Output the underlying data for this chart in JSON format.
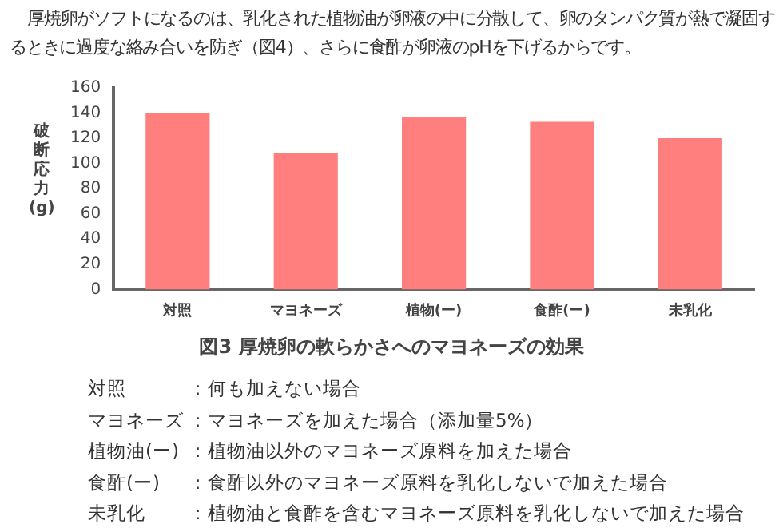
{
  "chart_data": {
    "type": "bar",
    "title": "図3 厚焼卵の軟らかさへのマヨネーズの効果",
    "subtitle": "厚焼卵がソフトになるのは、乳化された植物油が卵液の中に分散して、卵のタンパク質が熱で凝固するときに過度な絡み合いを防ぎ（図4）、さらに食酢が卵液のpHを下げるからです。",
    "ylabel": "破断応力(g)",
    "categories": [
      "対照",
      "マヨネーズ",
      "植物(ー)",
      "食酢(ー)",
      "未乳化"
    ],
    "values": [
      140,
      108,
      137,
      133,
      120
    ],
    "color": "#ff7f7f",
    "ylim": [
      0,
      160
    ],
    "yticks": [
      0,
      20,
      40,
      60,
      80,
      100,
      120,
      140,
      160
    ],
    "grid": false,
    "legend": false,
    "annotations": [
      "対照：何も加えない場合",
      "マヨネーズ：マヨネーズを加えた場合（添加量5%）",
      "植物油(ー)：植物油以外のマヨネーズ原料を加えた場合",
      "食酢(ー)：食酢以外のマヨネーズ原料を乳化しないで加えた場合",
      "未乳化：植物油と食酢を含むマヨネーズ原料を乳化しないで加えた場合"
    ]
  }
}
